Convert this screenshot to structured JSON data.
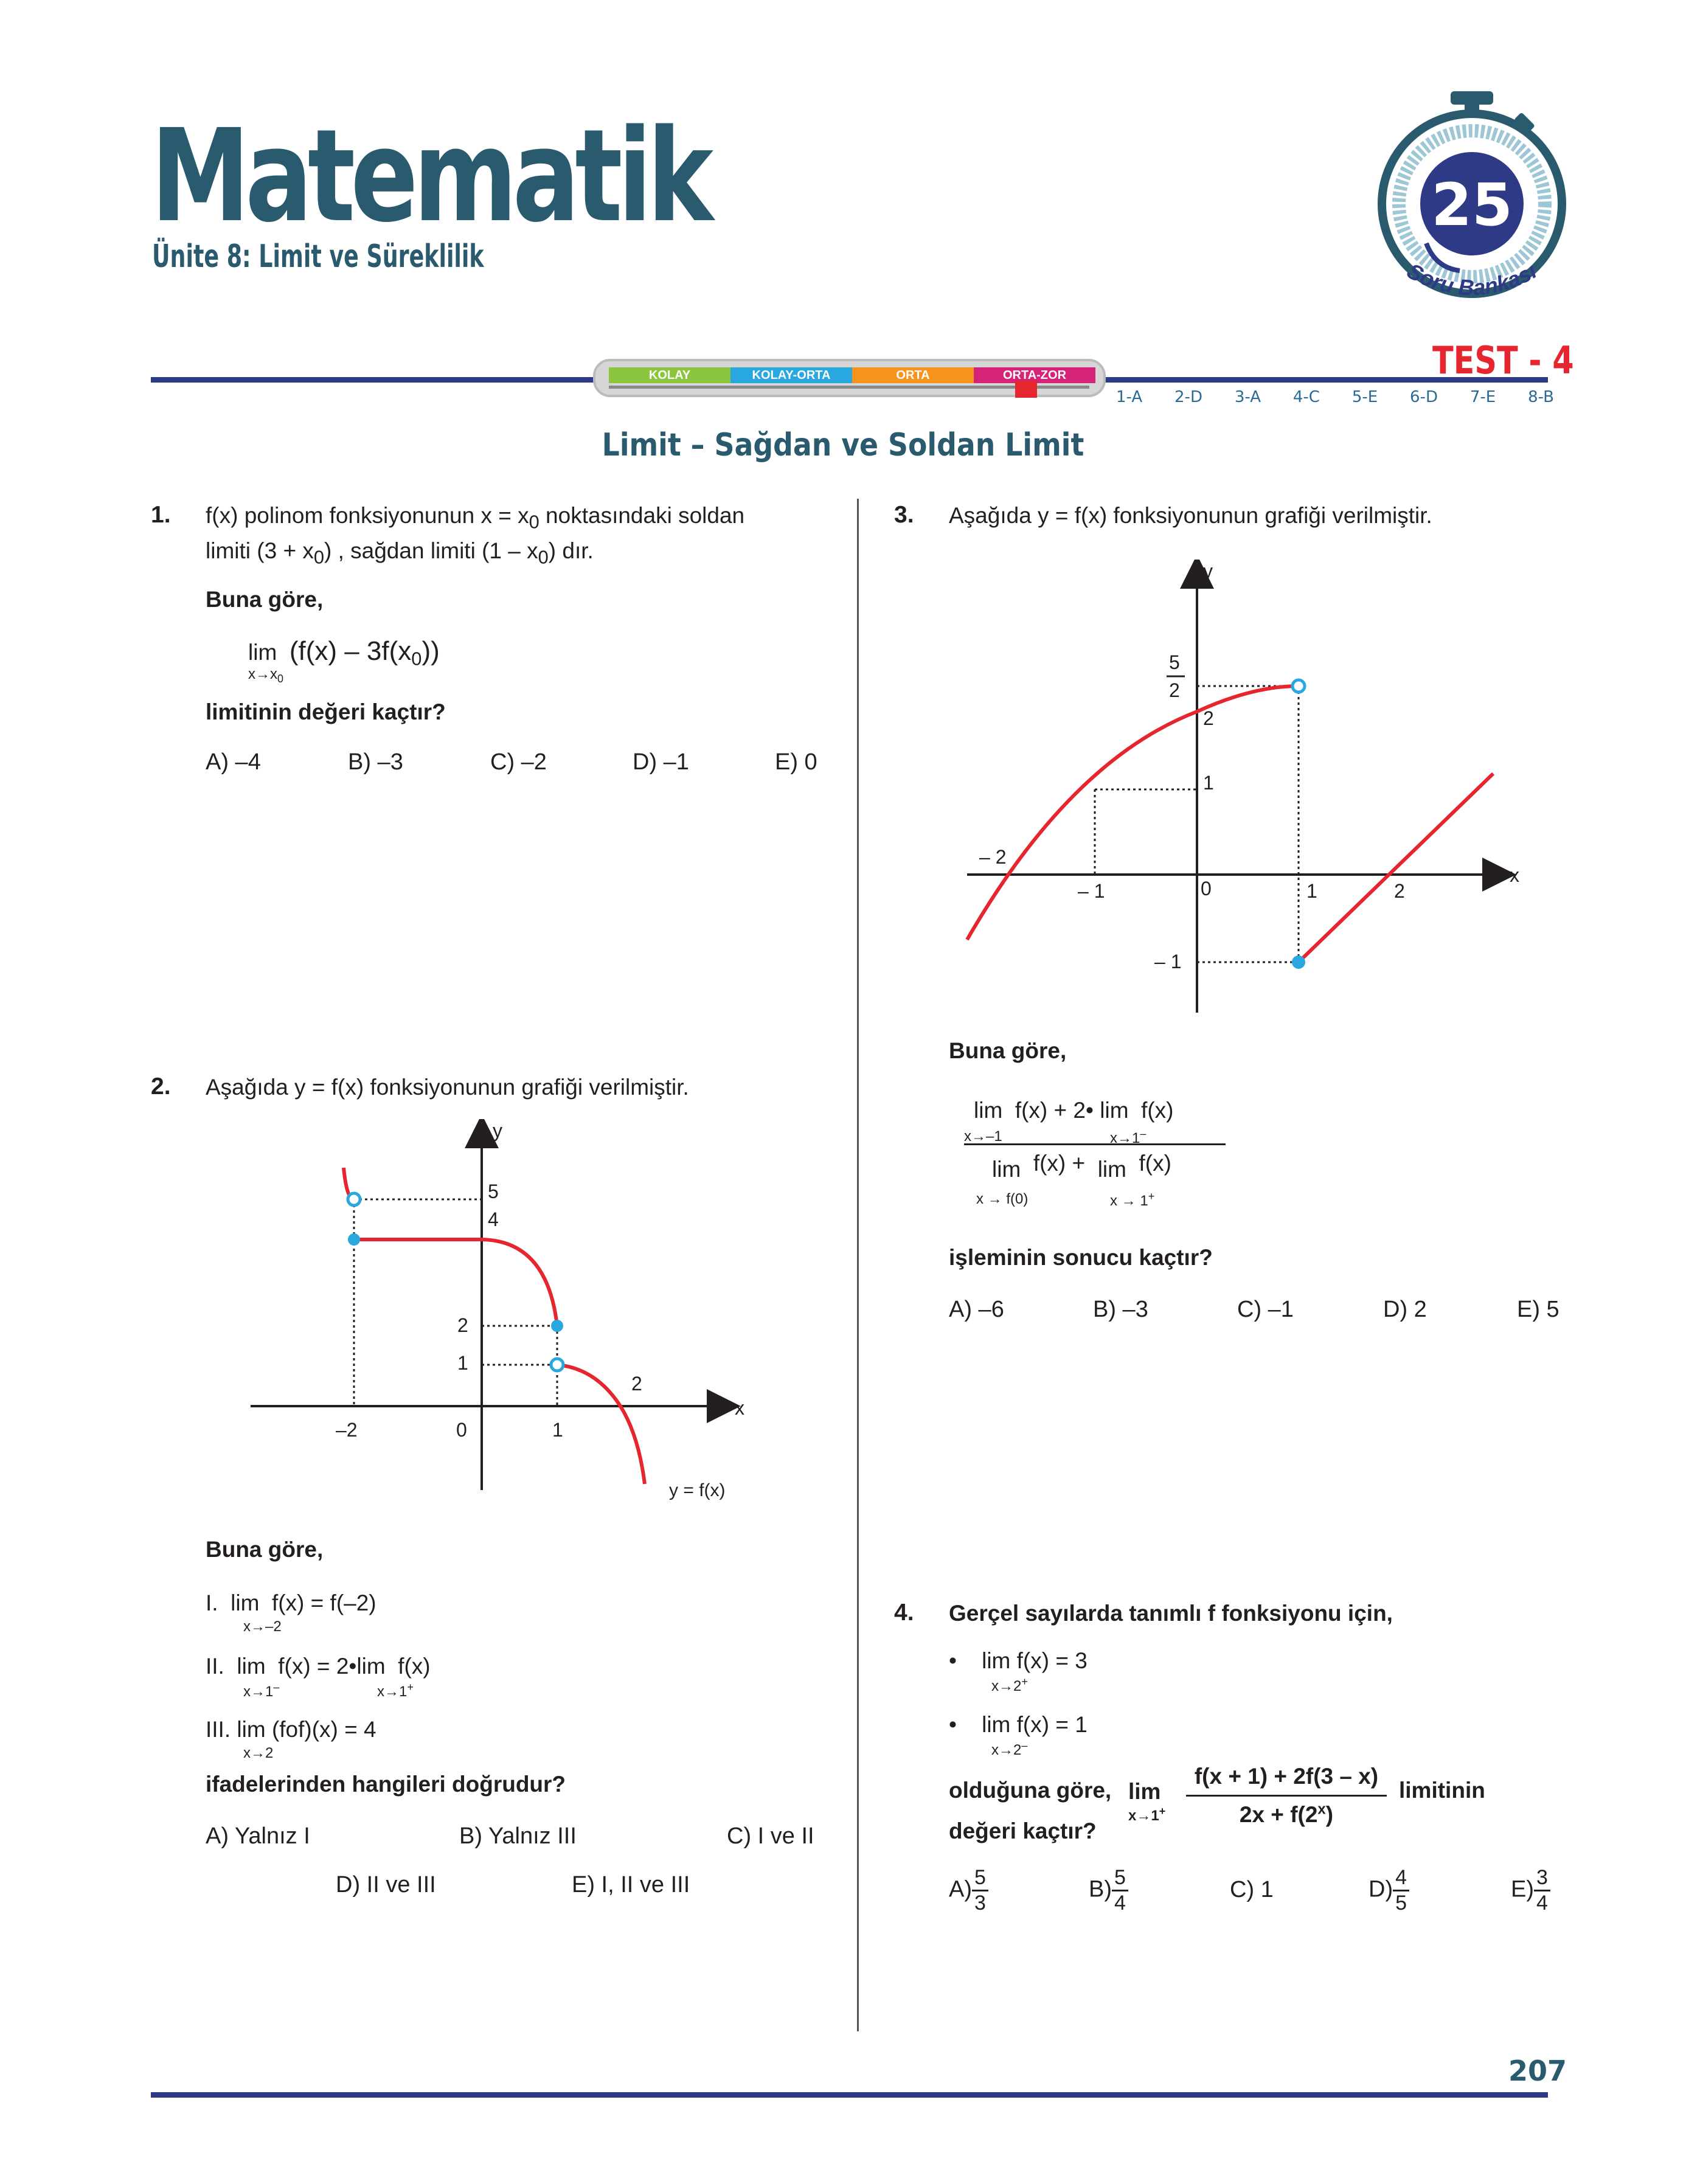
{
  "header": {
    "subject": "Matematik",
    "unit": "Ünite 8: Limit ve Süreklilik",
    "badge_number": "25",
    "badge_text": "Soru Bankası",
    "test_label": "TEST - 4",
    "difficulty_levels": [
      "KOLAY",
      "KOLAY-ORTA",
      "ORTA",
      "ORTA-ZOR"
    ],
    "difficulty_colors": [
      "#8cc63f",
      "#29a8df",
      "#f7941d",
      "#d6237a"
    ],
    "answer_keys": [
      "1-A",
      "2-D",
      "3-A",
      "4-C",
      "5-E",
      "6-D",
      "7-E",
      "8-B"
    ]
  },
  "section_title": "Limit – Sağdan ve Soldan Limit",
  "page_number": "207",
  "q1": {
    "number": "1.",
    "text_a": "f(x) polinom fonksiyonunun x = x",
    "text_b": " noktasındaki soldan",
    "text_c": "limiti (3 + x",
    "text_d": ") , sağdan limiti (1 – x",
    "text_e": ") dır.",
    "sub0": "0",
    "lead": "Buna göre,",
    "lim": "lim",
    "lim_sub": "x→x",
    "expr_a": "(f(x) – 3f(x",
    "expr_b": "))",
    "question": "limitinin değeri kaçtır?",
    "choices": [
      "A) –4",
      "B) –3",
      "C) –2",
      "D) –1",
      "E) 0"
    ]
  },
  "q2": {
    "number": "2.",
    "text": "Aşağıda y = f(x) fonksiyonunun grafiği verilmiştir.",
    "graph_labels": {
      "y": "y",
      "x": "x",
      "y5": "5",
      "y4": "4",
      "y2": "2",
      "y1": "1",
      "xm2": "–2",
      "o": "0",
      "x1": "1",
      "x2": "2",
      "curve": "y = f(x)"
    },
    "lead": "Buna göre,",
    "s1_roman": "I.",
    "s1_lim": "lim",
    "s1_sub": "x→–2",
    "s1_expr": "f(x) = f(–2)",
    "s2_roman": "II.",
    "s2_lim": "lim",
    "s2_sub": "x→1",
    "s2_sup": "–",
    "s2_mid": "f(x) = 2",
    "s2_lim2": "lim",
    "s2_sub2": "x→1",
    "s2_sup2": "+",
    "s2_end": "f(x)",
    "s3_roman": "III.",
    "s3_lim": "lim",
    "s3_sub": "x→2",
    "s3_expr": "(fof)(x) = 4",
    "question": "ifadelerinden hangileri doğrudur?",
    "choices": [
      "A) Yalnız I",
      "B) Yalnız III",
      "C) I ve II",
      "D) II ve III",
      "E) I, II ve III"
    ]
  },
  "q3": {
    "number": "3.",
    "text": "Aşağıda y = f(x) fonksiyonunun grafiği verilmiştir.",
    "graph_labels": {
      "y": "y",
      "x": "x",
      "y52n": "5",
      "y52d": "2",
      "y2": "2",
      "y1": "1",
      "ym1": "– 1",
      "xm2": "– 2",
      "xm1": "– 1",
      "o": "0",
      "x1": "1",
      "x2": "2"
    },
    "lead": "Buna göre,",
    "num_lim1": "lim",
    "num_sub1": "x→–1",
    "num_mid": "f(x) + 2",
    "num_lim2": "lim",
    "num_sub2": "x→1",
    "num_sup2": "–",
    "num_end": "f(x)",
    "den_lim1": "lim",
    "den_sub1": "x → f(0)",
    "den_mid": "f(x) +",
    "den_lim2": "lim",
    "den_sub2": "x → 1",
    "den_sup2": "+",
    "den_end": "f(x)",
    "question": "işleminin sonucu kaçtır?",
    "choices": [
      "A) –6",
      "B) –3",
      "C) –1",
      "D) 2",
      "E) 5"
    ]
  },
  "q4": {
    "number": "4.",
    "text": "Gerçel sayılarda tanımlı f fonksiyonu için,",
    "b1_lim": "lim",
    "b1_sub": "x→2",
    "b1_sup": "+",
    "b1_expr": "f(x) = 3",
    "b2_lim": "lim",
    "b2_sub": "x→2",
    "b2_sup": "–",
    "b2_expr": "f(x) = 1",
    "q_a": "olduğuna göre,",
    "q_lim": "lim",
    "q_sub": "x→1",
    "q_sup": "+",
    "frac_num": "f(x + 1) + 2f(3 – x)",
    "frac_den_a": "2x + f(2",
    "frac_den_sup": "x",
    "frac_den_b": ")",
    "q_b": "limitinin",
    "q_c": "değeri kaçtır?",
    "choices": [
      {
        "label": "A)",
        "num": "5",
        "den": "3"
      },
      {
        "label": "B)",
        "num": "5",
        "den": "4"
      },
      {
        "label": "C) 1",
        "num": "",
        "den": ""
      },
      {
        "label": "D)",
        "num": "4",
        "den": "5"
      },
      {
        "label": "E)",
        "num": "3",
        "den": "4"
      }
    ]
  }
}
